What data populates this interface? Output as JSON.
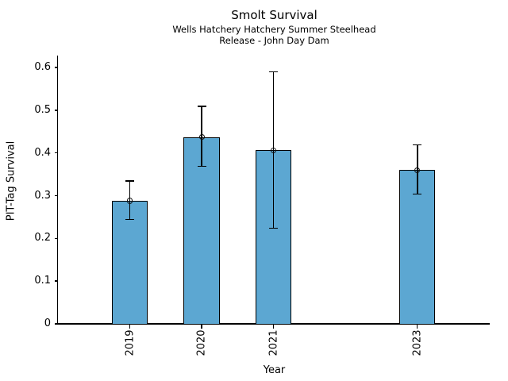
{
  "chart_data": {
    "type": "bar",
    "title": "Smolt Survival",
    "subtitle": [
      "Wells Hatchery Hatchery Summer Steelhead",
      "Release - John Day Dam"
    ],
    "xlabel": "Year",
    "ylabel": "PIT-Tag Survival",
    "categories": [
      "2019",
      "2020",
      "2021",
      "2023"
    ],
    "x": [
      2019,
      2020,
      2021,
      2023
    ],
    "values": [
      0.288,
      0.437,
      0.406,
      0.36
    ],
    "error_low": [
      0.244,
      0.369,
      0.224,
      0.304
    ],
    "error_high": [
      0.334,
      0.509,
      0.59,
      0.419
    ],
    "yticks": [
      0,
      0.1,
      0.2,
      0.3,
      0.4,
      0.5,
      0.6
    ],
    "ytick_labels": [
      "0",
      "0.1",
      "0.2",
      "0.3",
      "0.4",
      "0.5",
      "0.6"
    ],
    "xlim": [
      2018,
      2024
    ],
    "ylim": [
      0,
      0.628
    ],
    "bar_width": 0.5,
    "grid": false,
    "legend": null,
    "marker": "open-circle",
    "bar_color": "#5CA7D2",
    "bar_edge_color": "#000000",
    "error_color": "#000000",
    "text_color": "#000000"
  }
}
